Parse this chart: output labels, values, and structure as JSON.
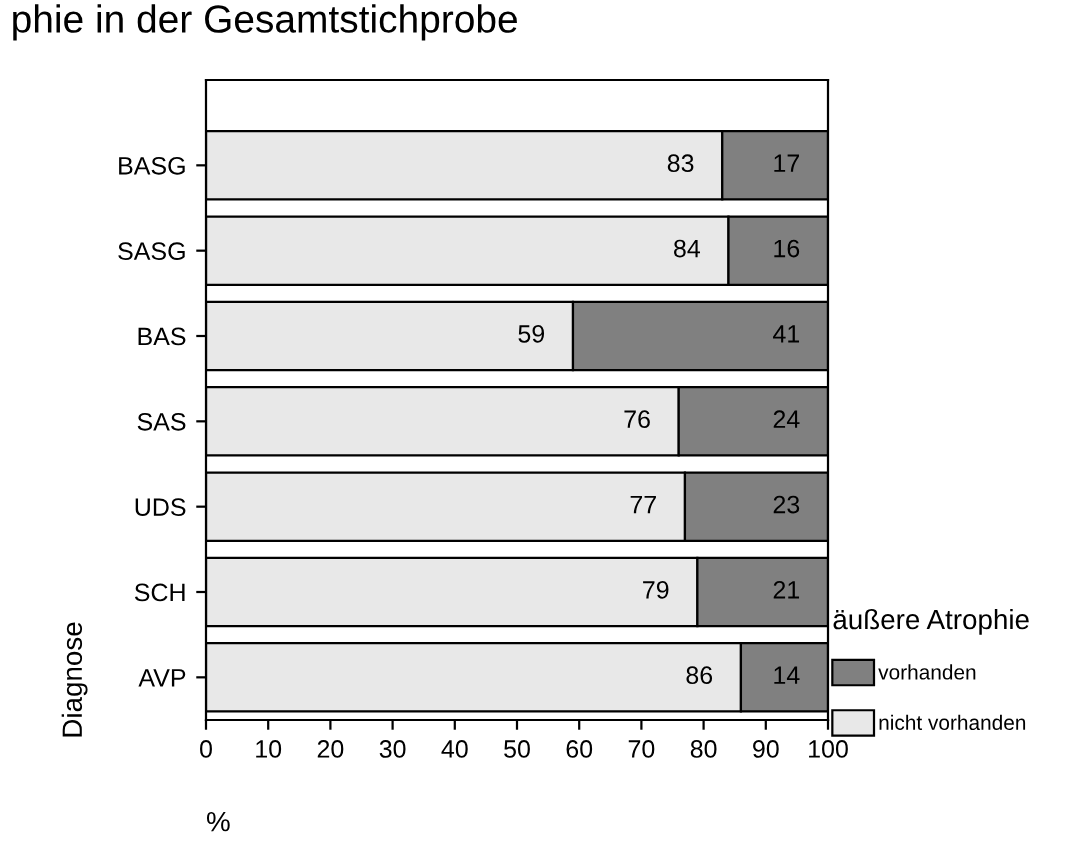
{
  "chart_data": {
    "type": "bar",
    "orientation": "horizontal",
    "stacked": true,
    "title": "phie in der Gesamtstichprobe",
    "xlabel": "%",
    "ylabel": "Diagnose",
    "legend_title": "äußere Atrophie",
    "categories": [
      "BASG",
      "SASG",
      "BAS",
      "SAS",
      "UDS",
      "SCH",
      "AVP"
    ],
    "series": [
      {
        "name": "nicht vorhanden",
        "color": "#e8e8e8",
        "values": [
          83,
          84,
          59,
          76,
          77,
          79,
          86
        ]
      },
      {
        "name": "vorhanden",
        "color": "#808080",
        "values": [
          17,
          16,
          41,
          24,
          23,
          21,
          14
        ]
      }
    ],
    "xlim": [
      0,
      100
    ],
    "xticks": [
      0,
      10,
      20,
      30,
      40,
      50,
      60,
      70,
      80,
      90,
      100
    ],
    "data_labels": true,
    "legend": "right",
    "grid": false
  }
}
